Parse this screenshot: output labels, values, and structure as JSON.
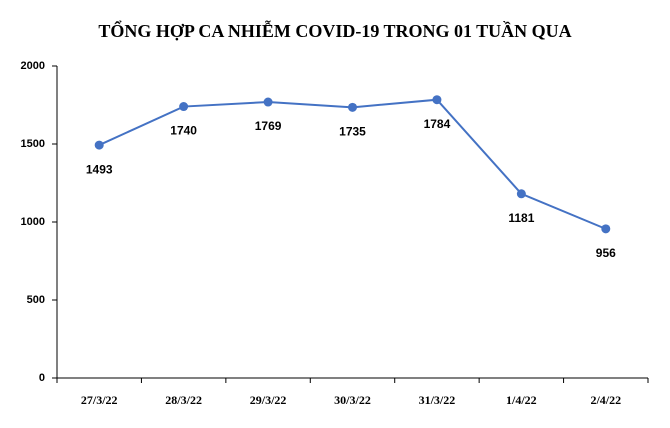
{
  "chart_data": {
    "type": "line",
    "title": "TỔNG HỢP CA NHIỄM COVID-19 TRONG 01 TUẦN QUA",
    "categories": [
      "27/3/22",
      "28/3/22",
      "29/3/22",
      "30/3/22",
      "31/3/22",
      "1/4/22",
      "2/4/22"
    ],
    "values": [
      1493,
      1740,
      1769,
      1735,
      1784,
      1181,
      956
    ],
    "color": "#4472c4",
    "ylim": [
      0,
      2000
    ],
    "yticks": [
      0,
      500,
      1000,
      1500,
      2000
    ],
    "grid": false
  }
}
